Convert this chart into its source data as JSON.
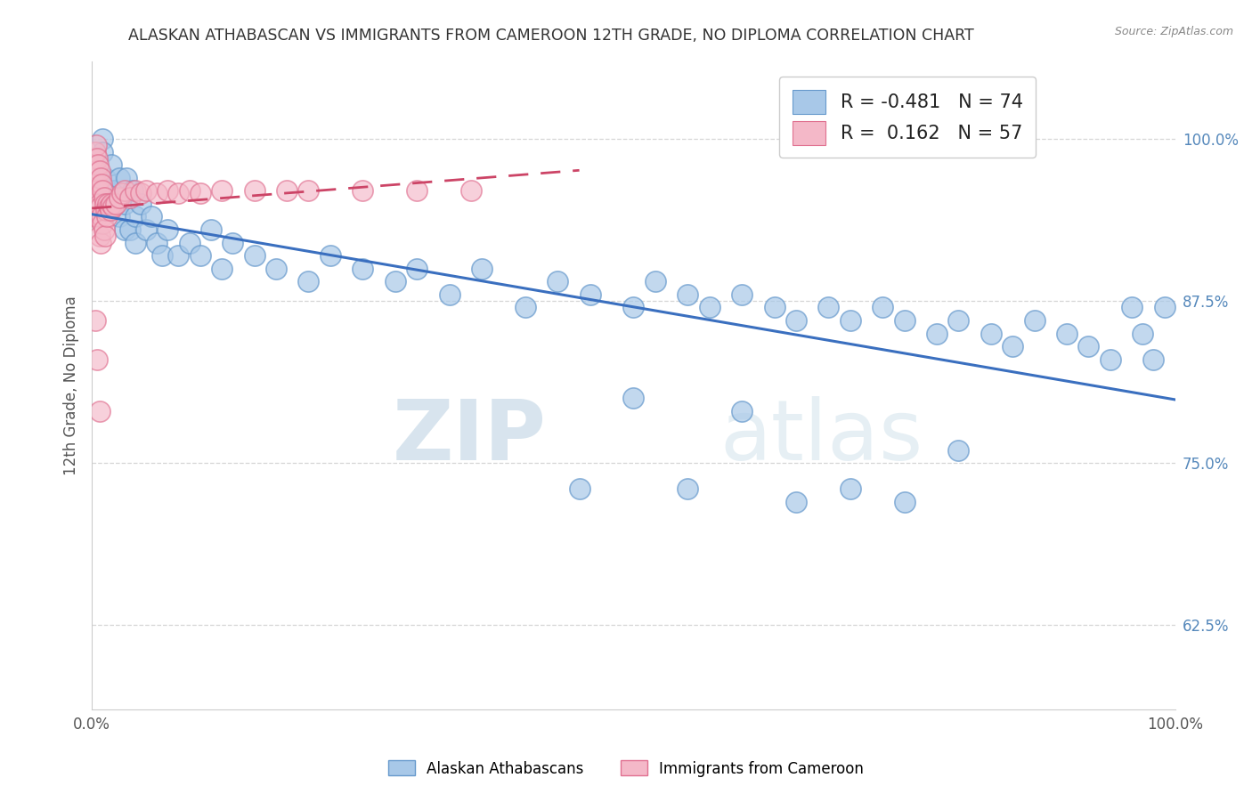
{
  "title": "ALASKAN ATHABASCAN VS IMMIGRANTS FROM CAMEROON 12TH GRADE, NO DIPLOMA CORRELATION CHART",
  "source_text": "Source: ZipAtlas.com",
  "ylabel": "12th Grade, No Diploma",
  "watermark_zip": "ZIP",
  "watermark_atlas": "atlas",
  "xlim": [
    0.0,
    1.0
  ],
  "ylim": [
    0.56,
    1.06
  ],
  "yticks": [
    0.625,
    0.75,
    0.875,
    1.0
  ],
  "ytick_labels": [
    "62.5%",
    "75.0%",
    "87.5%",
    "100.0%"
  ],
  "xticks": [
    0.0,
    0.25,
    0.5,
    0.75,
    1.0
  ],
  "xtick_labels": [
    "0.0%",
    "",
    "",
    "",
    "100.0%"
  ],
  "legend_R1": "-0.481",
  "legend_N1": "74",
  "legend_R2": "0.162",
  "legend_N2": "57",
  "blue_color": "#a8c8e8",
  "blue_edge_color": "#6699cc",
  "pink_color": "#f4b8c8",
  "pink_edge_color": "#e07090",
  "blue_line_color": "#3a6fbf",
  "pink_line_color": "#cc4466",
  "blue_scatter_x": [
    0.005,
    0.008,
    0.01,
    0.01,
    0.012,
    0.015,
    0.015,
    0.018,
    0.02,
    0.022,
    0.025,
    0.025,
    0.03,
    0.03,
    0.032,
    0.035,
    0.038,
    0.04,
    0.04,
    0.045,
    0.05,
    0.055,
    0.06,
    0.065,
    0.07,
    0.08,
    0.09,
    0.1,
    0.11,
    0.12,
    0.13,
    0.15,
    0.17,
    0.2,
    0.22,
    0.25,
    0.28,
    0.3,
    0.33,
    0.36,
    0.4,
    0.43,
    0.46,
    0.5,
    0.52,
    0.55,
    0.57,
    0.6,
    0.63,
    0.65,
    0.68,
    0.7,
    0.73,
    0.75,
    0.78,
    0.8,
    0.83,
    0.85,
    0.87,
    0.9,
    0.92,
    0.94,
    0.96,
    0.97,
    0.98,
    0.99,
    0.5,
    0.6,
    0.7,
    0.8,
    0.45,
    0.55,
    0.65,
    0.75
  ],
  "blue_scatter_y": [
    0.97,
    0.96,
    1.0,
    0.99,
    0.97,
    0.96,
    0.95,
    0.98,
    0.96,
    0.95,
    0.97,
    0.94,
    0.95,
    0.93,
    0.97,
    0.93,
    0.96,
    0.94,
    0.92,
    0.95,
    0.93,
    0.94,
    0.92,
    0.91,
    0.93,
    0.91,
    0.92,
    0.91,
    0.93,
    0.9,
    0.92,
    0.91,
    0.9,
    0.89,
    0.91,
    0.9,
    0.89,
    0.9,
    0.88,
    0.9,
    0.87,
    0.89,
    0.88,
    0.87,
    0.89,
    0.88,
    0.87,
    0.88,
    0.87,
    0.86,
    0.87,
    0.86,
    0.87,
    0.86,
    0.85,
    0.86,
    0.85,
    0.84,
    0.86,
    0.85,
    0.84,
    0.83,
    0.87,
    0.85,
    0.83,
    0.87,
    0.8,
    0.79,
    0.73,
    0.76,
    0.73,
    0.73,
    0.72,
    0.72
  ],
  "pink_scatter_x": [
    0.001,
    0.002,
    0.002,
    0.003,
    0.003,
    0.004,
    0.004,
    0.004,
    0.005,
    0.005,
    0.005,
    0.006,
    0.006,
    0.007,
    0.007,
    0.007,
    0.008,
    0.008,
    0.008,
    0.009,
    0.009,
    0.01,
    0.01,
    0.011,
    0.011,
    0.012,
    0.012,
    0.013,
    0.014,
    0.015,
    0.016,
    0.017,
    0.018,
    0.02,
    0.022,
    0.025,
    0.028,
    0.03,
    0.035,
    0.04,
    0.045,
    0.05,
    0.06,
    0.07,
    0.08,
    0.09,
    0.1,
    0.12,
    0.15,
    0.18,
    0.2,
    0.25,
    0.3,
    0.35,
    0.003,
    0.005,
    0.007
  ],
  "pink_scatter_y": [
    0.985,
    0.965,
    0.94,
    0.99,
    0.96,
    0.995,
    0.975,
    0.95,
    0.985,
    0.965,
    0.94,
    0.98,
    0.96,
    0.975,
    0.95,
    0.925,
    0.97,
    0.948,
    0.92,
    0.965,
    0.94,
    0.96,
    0.935,
    0.955,
    0.93,
    0.95,
    0.925,
    0.945,
    0.94,
    0.95,
    0.948,
    0.945,
    0.95,
    0.948,
    0.95,
    0.955,
    0.958,
    0.96,
    0.955,
    0.96,
    0.958,
    0.96,
    0.958,
    0.96,
    0.958,
    0.96,
    0.958,
    0.96,
    0.96,
    0.96,
    0.96,
    0.96,
    0.96,
    0.96,
    0.86,
    0.83,
    0.79
  ],
  "pink_line_x_start": 0.0,
  "pink_line_x_end": 0.45,
  "blue_line_x_start": 0.0,
  "blue_line_x_end": 1.0
}
